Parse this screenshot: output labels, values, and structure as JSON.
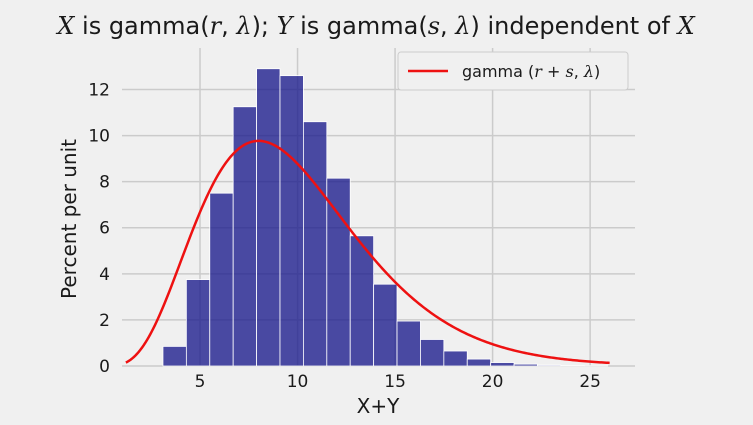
{
  "chart_data": {
    "type": "bar",
    "title": "X is gamma(r, λ); Y is gamma(s, λ) independent of X",
    "xlabel": "X+Y",
    "ylabel": "Percent per unit",
    "xlim": [
      1.0,
      27.3
    ],
    "ylim": [
      0,
      13.8
    ],
    "xticks": [
      5,
      10,
      15,
      20,
      25
    ],
    "yticks": [
      0,
      2,
      4,
      6,
      8,
      10,
      12
    ],
    "grid": true,
    "bin_width": 1.2,
    "bins": [
      {
        "start": 3.1,
        "value": 0.85
      },
      {
        "start": 4.3,
        "value": 3.75
      },
      {
        "start": 5.5,
        "value": 7.5
      },
      {
        "start": 6.7,
        "value": 11.25
      },
      {
        "start": 7.9,
        "value": 12.9
      },
      {
        "start": 9.1,
        "value": 12.6
      },
      {
        "start": 10.3,
        "value": 10.6
      },
      {
        "start": 11.5,
        "value": 8.15
      },
      {
        "start": 12.7,
        "value": 5.65
      },
      {
        "start": 13.9,
        "value": 3.55
      },
      {
        "start": 15.1,
        "value": 1.95
      },
      {
        "start": 16.3,
        "value": 1.15
      },
      {
        "start": 17.5,
        "value": 0.65
      },
      {
        "start": 18.7,
        "value": 0.3
      },
      {
        "start": 19.9,
        "value": 0.15
      },
      {
        "start": 21.1,
        "value": 0.08
      },
      {
        "start": 22.3,
        "value": 0.04
      },
      {
        "start": 23.5,
        "value": 0.02
      },
      {
        "start": 24.7,
        "value": 0.01
      }
    ],
    "curve": {
      "name": "gamma (r + s, λ)",
      "shape": 5,
      "rate": 0.5,
      "scale_percent": 100,
      "x_range": [
        1.2,
        26
      ]
    },
    "colors": {
      "bars": "#1a1a8c",
      "curve": "#ee1111",
      "grid": "#cbcbcb",
      "background": "#f0f0f0"
    },
    "legend": {
      "placement": "top-right"
    }
  }
}
